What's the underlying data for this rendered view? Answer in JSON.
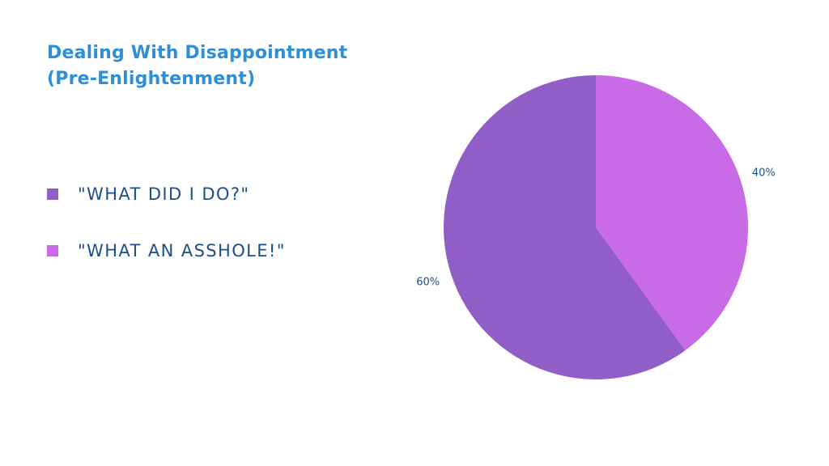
{
  "chart_data": {
    "type": "pie",
    "title": "Dealing With Disappointment",
    "subtitle": "(Pre-Enlightenment)",
    "legend_position": "left",
    "categories": [
      "\"WHAT DID I DO?\"",
      "\"WHAT AN ASSHOLE!\""
    ],
    "values": [
      60,
      40
    ],
    "value_labels": [
      "60%",
      "40%"
    ],
    "colors": [
      "#915dc7",
      "#c96be6"
    ],
    "start_angle_deg": 0,
    "direction": "counterclockwise"
  }
}
